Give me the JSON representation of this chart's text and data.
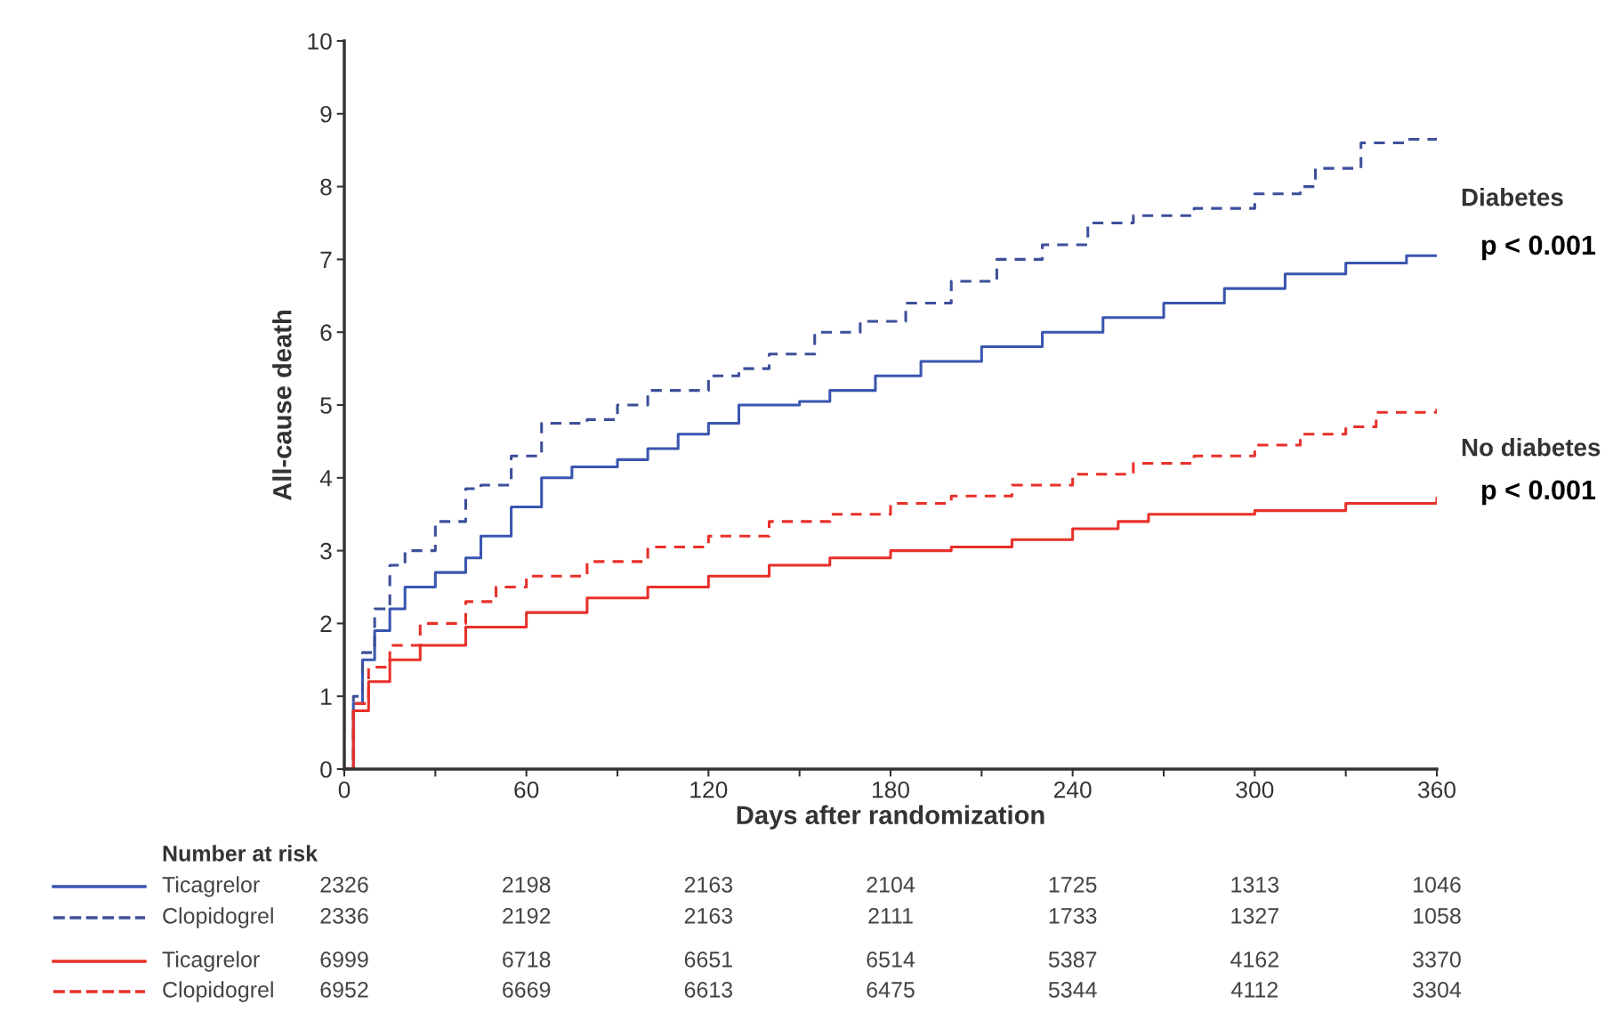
{
  "chart_data": {
    "type": "step",
    "xlabel": "Days after randomization",
    "ylabel": "All-cause death",
    "xlim": [
      0,
      360
    ],
    "ylim": [
      0,
      10
    ],
    "xticks": [
      0,
      {
        "value": 30,
        "label": null
      },
      60,
      {
        "value": 90,
        "label": null
      },
      120,
      {
        "value": 150,
        "label": null
      },
      180,
      {
        "value": 210,
        "label": null
      },
      240,
      {
        "value": 270,
        "label": null
      },
      300,
      {
        "value": 330,
        "label": null
      },
      360
    ],
    "yticks": [
      0,
      1,
      2,
      3,
      4,
      5,
      6,
      7,
      8,
      9,
      10
    ],
    "grid": false,
    "legend": "bottom left",
    "series": [
      {
        "name": "Ticagrelor",
        "color": "#3a56b0",
        "line_style": "solid",
        "x": [
          0,
          3,
          6,
          10,
          15,
          20,
          30,
          40,
          45,
          55,
          65,
          75,
          90,
          100,
          110,
          120,
          130,
          150,
          160,
          175,
          190,
          210,
          230,
          250,
          270,
          290,
          310,
          330,
          350,
          360
        ],
        "values": [
          0,
          0.9,
          1.5,
          1.9,
          2.2,
          2.5,
          2.7,
          2.9,
          3.2,
          3.6,
          4.0,
          4.15,
          4.25,
          4.4,
          4.6,
          4.75,
          5.0,
          5.05,
          5.2,
          5.4,
          5.6,
          5.8,
          6.0,
          6.2,
          6.4,
          6.6,
          6.8,
          6.95,
          7.05,
          7.05
        ]
      },
      {
        "name": "Clopidogrel",
        "color": "#3d4f9a",
        "line_style": "dashed",
        "x": [
          0,
          3,
          6,
          10,
          15,
          20,
          30,
          40,
          45,
          55,
          65,
          80,
          90,
          100,
          120,
          130,
          140,
          155,
          170,
          185,
          200,
          215,
          230,
          245,
          260,
          280,
          300,
          315,
          320,
          335,
          350,
          360
        ],
        "values": [
          0,
          1.0,
          1.6,
          2.2,
          2.8,
          3.0,
          3.4,
          3.85,
          3.9,
          4.3,
          4.75,
          4.8,
          5.0,
          5.2,
          5.4,
          5.5,
          5.7,
          6.0,
          6.15,
          6.4,
          6.7,
          7.0,
          7.2,
          7.5,
          7.6,
          7.7,
          7.9,
          8.0,
          8.25,
          8.6,
          8.65,
          8.75
        ]
      },
      {
        "name": "Ticagrelor",
        "color": "#e8302a",
        "line_style": "solid",
        "x": [
          0,
          3,
          8,
          15,
          25,
          40,
          60,
          80,
          100,
          120,
          140,
          160,
          180,
          200,
          220,
          240,
          255,
          265,
          300,
          330,
          360
        ],
        "values": [
          0,
          0.8,
          1.2,
          1.5,
          1.7,
          1.95,
          2.15,
          2.35,
          2.5,
          2.65,
          2.8,
          2.9,
          3.0,
          3.05,
          3.15,
          3.3,
          3.4,
          3.5,
          3.55,
          3.65,
          3.72
        ]
      },
      {
        "name": "Clopidogrel",
        "color": "#e8302a",
        "line_style": "dashed",
        "x": [
          0,
          3,
          8,
          15,
          25,
          40,
          50,
          60,
          80,
          100,
          120,
          140,
          160,
          180,
          200,
          220,
          240,
          260,
          280,
          300,
          315,
          330,
          340,
          360
        ],
        "values": [
          0,
          0.9,
          1.4,
          1.7,
          2.0,
          2.3,
          2.5,
          2.65,
          2.85,
          3.05,
          3.2,
          3.4,
          3.5,
          3.65,
          3.75,
          3.9,
          4.05,
          4.2,
          4.3,
          4.45,
          4.6,
          4.7,
          4.9,
          4.95
        ]
      }
    ],
    "annotations": [
      "Diabetes",
      "p < 0.001",
      "No diabetes",
      "p < 0.001",
      "Number at risk",
      "2326 2198 2163 2104 1725 1313 1046",
      "2336 2192 2163 2111 1733 1327 1058",
      "6999 6718 6651 6514 5387 4162 3370",
      "6952 6669 6613 6475 5344 4112 3304"
    ]
  }
}
